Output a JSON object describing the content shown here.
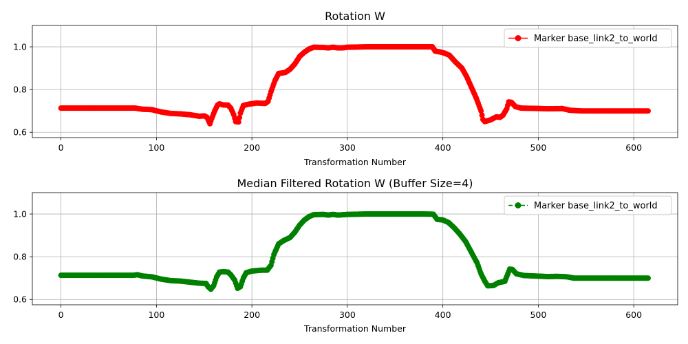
{
  "chart_data": [
    {
      "type": "line",
      "title": "Rotation W",
      "xlabel": "Transformation Number",
      "ylabel": "",
      "xlim": [
        -30,
        646
      ],
      "ylim": [
        0.575,
        1.1
      ],
      "xticks": [
        "0",
        "100",
        "200",
        "300",
        "400",
        "500",
        "600"
      ],
      "yticks": [
        "0.6",
        "0.8",
        "1.0"
      ],
      "grid": true,
      "legend_position": "top-right",
      "series": [
        {
          "name": "Marker base_link2_to_world",
          "color": "#ff0000",
          "linestyle": "solid",
          "marker": "circle",
          "points": [
            [
              0,
              0.713
            ],
            [
              20,
              0.713
            ],
            [
              40,
              0.713
            ],
            [
              60,
              0.713
            ],
            [
              78,
              0.713
            ],
            [
              85,
              0.708
            ],
            [
              95,
              0.706
            ],
            [
              105,
              0.695
            ],
            [
              115,
              0.688
            ],
            [
              125,
              0.686
            ],
            [
              135,
              0.682
            ],
            [
              145,
              0.675
            ],
            [
              150,
              0.677
            ],
            [
              153,
              0.67
            ],
            [
              156,
              0.64
            ],
            [
              158,
              0.665
            ],
            [
              161,
              0.7
            ],
            [
              164,
              0.727
            ],
            [
              166,
              0.733
            ],
            [
              170,
              0.728
            ],
            [
              175,
              0.727
            ],
            [
              178,
              0.712
            ],
            [
              181,
              0.682
            ],
            [
              183,
              0.65
            ],
            [
              186,
              0.648
            ],
            [
              188,
              0.69
            ],
            [
              191,
              0.725
            ],
            [
              196,
              0.731
            ],
            [
              205,
              0.737
            ],
            [
              214,
              0.735
            ],
            [
              217,
              0.745
            ],
            [
              220,
              0.79
            ],
            [
              224,
              0.84
            ],
            [
              228,
              0.875
            ],
            [
              235,
              0.88
            ],
            [
              240,
              0.895
            ],
            [
              245,
              0.92
            ],
            [
              250,
              0.955
            ],
            [
              255,
              0.975
            ],
            [
              260,
              0.99
            ],
            [
              265,
              0.998
            ],
            [
              275,
              0.997
            ],
            [
              280,
              0.995
            ],
            [
              285,
              0.998
            ],
            [
              290,
              0.995
            ],
            [
              295,
              0.995
            ],
            [
              300,
              0.998
            ],
            [
              320,
              1.0
            ],
            [
              340,
              1.0
            ],
            [
              360,
              1.0
            ],
            [
              380,
              1.0
            ],
            [
              389,
              1.0
            ],
            [
              392,
              0.98
            ],
            [
              398,
              0.975
            ],
            [
              402,
              0.97
            ],
            [
              407,
              0.96
            ],
            [
              413,
              0.93
            ],
            [
              420,
              0.9
            ],
            [
              425,
              0.86
            ],
            [
              430,
              0.81
            ],
            [
              435,
              0.76
            ],
            [
              440,
              0.7
            ],
            [
              442,
              0.66
            ],
            [
              444,
              0.65
            ],
            [
              450,
              0.658
            ],
            [
              456,
              0.672
            ],
            [
              460,
              0.67
            ],
            [
              463,
              0.68
            ],
            [
              467,
              0.71
            ],
            [
              469,
              0.742
            ],
            [
              472,
              0.74
            ],
            [
              476,
              0.72
            ],
            [
              482,
              0.713
            ],
            [
              495,
              0.712
            ],
            [
              510,
              0.71
            ],
            [
              525,
              0.711
            ],
            [
              533,
              0.703
            ],
            [
              545,
              0.7
            ],
            [
              570,
              0.7
            ],
            [
              600,
              0.7
            ],
            [
              615,
              0.7
            ]
          ]
        }
      ]
    },
    {
      "type": "line",
      "title": "Median Filtered Rotation W (Buffer Size=4)",
      "xlabel": "Transformation Number",
      "ylabel": "",
      "xlim": [
        -30,
        646
      ],
      "ylim": [
        0.575,
        1.1
      ],
      "xticks": [
        "0",
        "100",
        "200",
        "300",
        "400",
        "500",
        "600"
      ],
      "yticks": [
        "0.6",
        "0.8",
        "1.0"
      ],
      "grid": true,
      "legend_position": "top-right",
      "series": [
        {
          "name": "Marker base_link2_to_world",
          "color": "#008000",
          "linestyle": "dashed",
          "marker": "circle",
          "points": [
            [
              0,
              0.713
            ],
            [
              20,
              0.713
            ],
            [
              40,
              0.713
            ],
            [
              60,
              0.713
            ],
            [
              76,
              0.713
            ],
            [
              80,
              0.716
            ],
            [
              85,
              0.71
            ],
            [
              95,
              0.706
            ],
            [
              105,
              0.695
            ],
            [
              115,
              0.688
            ],
            [
              125,
              0.686
            ],
            [
              135,
              0.681
            ],
            [
              145,
              0.676
            ],
            [
              152,
              0.675
            ],
            [
              154,
              0.66
            ],
            [
              157,
              0.648
            ],
            [
              160,
              0.665
            ],
            [
              163,
              0.705
            ],
            [
              166,
              0.728
            ],
            [
              170,
              0.73
            ],
            [
              175,
              0.728
            ],
            [
              178,
              0.715
            ],
            [
              182,
              0.69
            ],
            [
              185,
              0.652
            ],
            [
              188,
              0.66
            ],
            [
              191,
              0.7
            ],
            [
              194,
              0.725
            ],
            [
              200,
              0.733
            ],
            [
              210,
              0.737
            ],
            [
              216,
              0.737
            ],
            [
              220,
              0.76
            ],
            [
              223,
              0.81
            ],
            [
              228,
              0.86
            ],
            [
              233,
              0.875
            ],
            [
              240,
              0.89
            ],
            [
              245,
              0.915
            ],
            [
              250,
              0.948
            ],
            [
              255,
              0.972
            ],
            [
              260,
              0.988
            ],
            [
              265,
              0.997
            ],
            [
              275,
              0.998
            ],
            [
              280,
              0.995
            ],
            [
              285,
              0.998
            ],
            [
              290,
              0.995
            ],
            [
              300,
              0.998
            ],
            [
              320,
              1.0
            ],
            [
              340,
              1.0
            ],
            [
              360,
              1.0
            ],
            [
              380,
              1.0
            ],
            [
              390,
              0.999
            ],
            [
              394,
              0.975
            ],
            [
              400,
              0.972
            ],
            [
              406,
              0.96
            ],
            [
              412,
              0.935
            ],
            [
              418,
              0.905
            ],
            [
              424,
              0.87
            ],
            [
              430,
              0.82
            ],
            [
              436,
              0.77
            ],
            [
              440,
              0.72
            ],
            [
              444,
              0.685
            ],
            [
              447,
              0.664
            ],
            [
              453,
              0.665
            ],
            [
              458,
              0.678
            ],
            [
              465,
              0.685
            ],
            [
              470,
              0.742
            ],
            [
              473,
              0.74
            ],
            [
              477,
              0.72
            ],
            [
              485,
              0.712
            ],
            [
              495,
              0.71
            ],
            [
              510,
              0.707
            ],
            [
              520,
              0.708
            ],
            [
              530,
              0.706
            ],
            [
              537,
              0.7
            ],
            [
              560,
              0.7
            ],
            [
              590,
              0.7
            ],
            [
              615,
              0.7
            ]
          ]
        }
      ]
    }
  ]
}
